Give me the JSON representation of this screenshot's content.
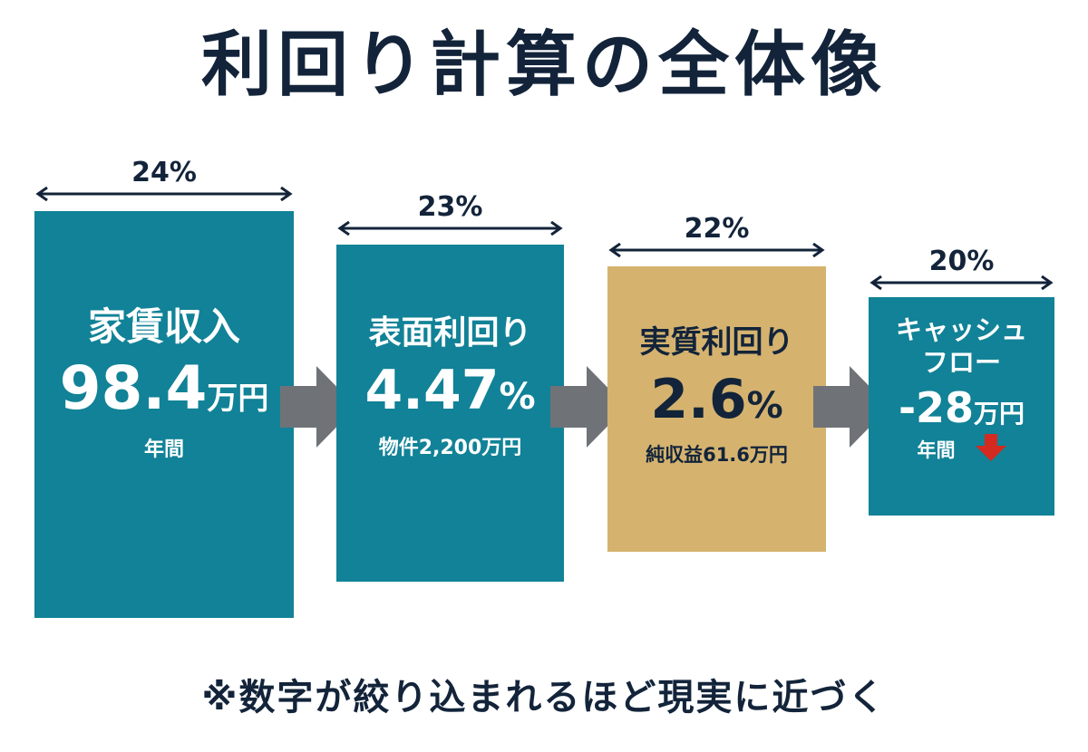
{
  "title": "利回り計算の全体像",
  "stages": [
    {
      "width_percent": "24%",
      "title": "家賃収入",
      "value": "98.4",
      "unit": "万円",
      "sub": "年間",
      "color": "#118297"
    },
    {
      "width_percent": "23%",
      "title": "表面利回り",
      "value": "4.47",
      "unit": "%",
      "sub": "物件2,200万円",
      "color": "#118297"
    },
    {
      "width_percent": "22%",
      "title": "実質利回り",
      "value": "2.6",
      "unit": "%",
      "sub": "純収益61.6万円",
      "color": "#d5b36f"
    },
    {
      "width_percent": "20%",
      "title_line1": "キャッシュ",
      "title_line2": "フロー",
      "value": "-28",
      "unit": "万円",
      "sub": "年間",
      "color": "#118297",
      "indicator": "down-arrow-icon"
    }
  ],
  "footnote": "※数字が絞り込まれるほど現実に近づく",
  "colors": {
    "dark_text": "#13243a",
    "teal": "#118297",
    "gold": "#d5b36f",
    "flow_arrow": "#6f7378",
    "down_arrow": "#d42a20"
  }
}
